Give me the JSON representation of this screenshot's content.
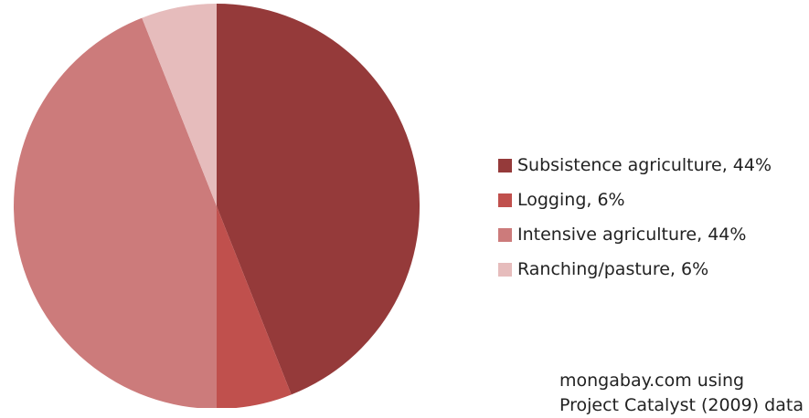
{
  "chart_data": {
    "type": "pie",
    "title": "",
    "slices": [
      {
        "label": "Subsistence agriculture",
        "value": 44,
        "legend_text": "Subsistence agriculture, 44%",
        "color": "#953a3a"
      },
      {
        "label": "Logging",
        "value": 6,
        "legend_text": "Logging, 6%",
        "color": "#c0504d"
      },
      {
        "label": "Intensive agriculture",
        "value": 44,
        "legend_text": "Intensive agriculture, 44%",
        "color": "#cc7b7b"
      },
      {
        "label": "Ranching/pasture",
        "value": 6,
        "legend_text": "Ranching/pasture, 6%",
        "color": "#e6bcbc"
      }
    ],
    "legend_position": "right"
  },
  "source": {
    "line1": "mongabay.com using",
    "line2": "Project Catalyst (2009) data"
  }
}
